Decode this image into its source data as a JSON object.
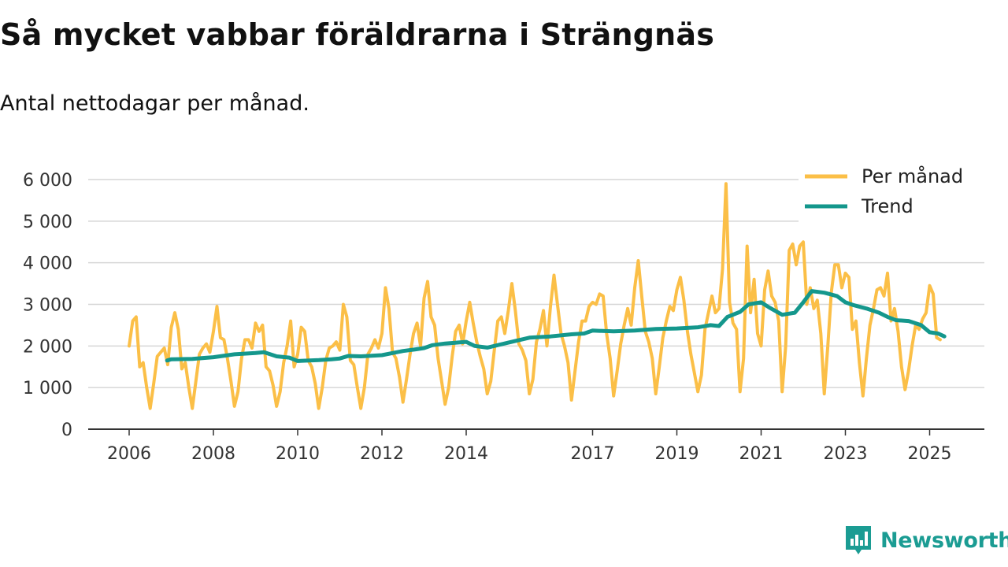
{
  "title": "Så mycket vabbar föräldrarna i Strängnäs",
  "subtitle": "Antal nettodagar per månad.",
  "brand": {
    "name": "Newsworthy",
    "icon": "bar-chart-logo-icon",
    "color": "#1b9c93"
  },
  "chart_data": {
    "type": "line",
    "title": "Så mycket vabbar föräldrarna i Strängnäs",
    "subtitle": "Antal nettodagar per månad.",
    "xlabel": "",
    "ylabel": "",
    "xlim": [
      2006.0,
      2025.5
    ],
    "ylim": [
      0,
      6000
    ],
    "x_tick_values": [
      2006,
      2008,
      2010,
      2012,
      2014,
      2017,
      2019,
      2021,
      2023,
      2025
    ],
    "x_tick_labels": [
      "2006",
      "2008",
      "2010",
      "2012",
      "2014",
      "2017",
      "2019",
      "2021",
      "2023",
      "2025"
    ],
    "y_tick_values": [
      0,
      1000,
      2000,
      3000,
      4000,
      5000,
      6000
    ],
    "y_tick_labels": [
      "0",
      "1 000",
      "2 000",
      "3 000",
      "4 000",
      "5 000",
      "6 000"
    ],
    "grid": true,
    "legend": {
      "position": "top-right",
      "entries": [
        "Per månad",
        "Trend"
      ]
    },
    "series": [
      {
        "name": "Per månad",
        "color": "#fbbf47",
        "x_start": 2006.0,
        "x_step": 0.0833333,
        "values": [
          2000,
          2600,
          2700,
          1500,
          1600,
          1000,
          500,
          1100,
          1750,
          1850,
          1950,
          1550,
          2450,
          2800,
          2400,
          1450,
          1600,
          1000,
          500,
          1150,
          1800,
          1950,
          2050,
          1850,
          2350,
          2950,
          2200,
          2150,
          1700,
          1150,
          550,
          900,
          1700,
          2150,
          2150,
          1950,
          2550,
          2350,
          2500,
          1500,
          1400,
          1050,
          550,
          900,
          1600,
          2000,
          2600,
          1500,
          1800,
          2450,
          2350,
          1650,
          1500,
          1100,
          500,
          1000,
          1650,
          1950,
          2000,
          2100,
          1900,
          3000,
          2700,
          1650,
          1550,
          1000,
          500,
          1000,
          1800,
          1950,
          2150,
          1950,
          2300,
          3400,
          2900,
          1850,
          1700,
          1250,
          650,
          1200,
          1800,
          2300,
          2550,
          2000,
          3150,
          3550,
          2700,
          2500,
          1700,
          1150,
          600,
          1000,
          1750,
          2350,
          2500,
          2050,
          2600,
          3050,
          2550,
          2100,
          1750,
          1450,
          850,
          1150,
          1900,
          2600,
          2700,
          2300,
          2850,
          3500,
          2850,
          2050,
          1900,
          1650,
          850,
          1200,
          2100,
          2400,
          2850,
          2000,
          2950,
          3700,
          3000,
          2300,
          2000,
          1600,
          700,
          1400,
          2100,
          2600,
          2600,
          2950,
          3050,
          3000,
          3250,
          3200,
          2300,
          1700,
          800,
          1400,
          2050,
          2500,
          2900,
          2500,
          3400,
          4050,
          3200,
          2350,
          2100,
          1700,
          850,
          1500,
          2200,
          2600,
          2950,
          2850,
          3350,
          3650,
          3100,
          2350,
          1800,
          1350,
          900,
          1300,
          2400,
          2800,
          3200,
          2800,
          2900,
          3850,
          5900,
          3050,
          2550,
          2400,
          900,
          1700,
          4400,
          2800,
          3600,
          2300,
          2000,
          3350,
          3800,
          3200,
          3050,
          2600,
          900,
          2000,
          4300,
          4450,
          3950,
          4400,
          4500,
          3000,
          3400,
          2900,
          3100,
          2300,
          850,
          2000,
          3300,
          3950,
          3950,
          3400,
          3750,
          3650,
          2400,
          2600,
          1600,
          800,
          1700,
          2500,
          2900,
          3350,
          3400,
          3200,
          3750,
          2600,
          2900,
          2350,
          1500,
          950,
          1400,
          2000,
          2500,
          2400,
          2650,
          2800,
          3450,
          3250,
          2200,
          2150
        ]
      },
      {
        "name": "Trend",
        "color": "#14978c",
        "points": [
          [
            2006.9,
            1650
          ],
          [
            2007.0,
            1680
          ],
          [
            2007.5,
            1690
          ],
          [
            2008.0,
            1730
          ],
          [
            2008.5,
            1800
          ],
          [
            2009.0,
            1830
          ],
          [
            2009.2,
            1850
          ],
          [
            2009.5,
            1750
          ],
          [
            2009.8,
            1720
          ],
          [
            2010.0,
            1640
          ],
          [
            2010.5,
            1660
          ],
          [
            2010.8,
            1680
          ],
          [
            2011.0,
            1700
          ],
          [
            2011.2,
            1760
          ],
          [
            2011.5,
            1750
          ],
          [
            2012.0,
            1780
          ],
          [
            2012.5,
            1880
          ],
          [
            2012.8,
            1920
          ],
          [
            2013.0,
            1950
          ],
          [
            2013.2,
            2020
          ],
          [
            2013.5,
            2060
          ],
          [
            2014.0,
            2100
          ],
          [
            2014.2,
            2000
          ],
          [
            2014.5,
            1960
          ],
          [
            2015.0,
            2080
          ],
          [
            2015.5,
            2200
          ],
          [
            2016.0,
            2230
          ],
          [
            2016.5,
            2280
          ],
          [
            2016.8,
            2300
          ],
          [
            2017.0,
            2370
          ],
          [
            2017.5,
            2350
          ],
          [
            2018.0,
            2370
          ],
          [
            2018.5,
            2410
          ],
          [
            2019.0,
            2420
          ],
          [
            2019.5,
            2450
          ],
          [
            2019.8,
            2500
          ],
          [
            2020.0,
            2480
          ],
          [
            2020.2,
            2700
          ],
          [
            2020.5,
            2820
          ],
          [
            2020.7,
            3000
          ],
          [
            2021.0,
            3050
          ],
          [
            2021.2,
            2920
          ],
          [
            2021.5,
            2750
          ],
          [
            2021.8,
            2800
          ],
          [
            2022.0,
            3050
          ],
          [
            2022.2,
            3320
          ],
          [
            2022.5,
            3280
          ],
          [
            2022.8,
            3200
          ],
          [
            2023.0,
            3050
          ],
          [
            2023.2,
            2980
          ],
          [
            2023.5,
            2900
          ],
          [
            2023.8,
            2800
          ],
          [
            2024.0,
            2700
          ],
          [
            2024.2,
            2620
          ],
          [
            2024.5,
            2600
          ],
          [
            2024.8,
            2500
          ],
          [
            2025.0,
            2330
          ],
          [
            2025.2,
            2300
          ],
          [
            2025.35,
            2230
          ]
        ]
      }
    ]
  }
}
